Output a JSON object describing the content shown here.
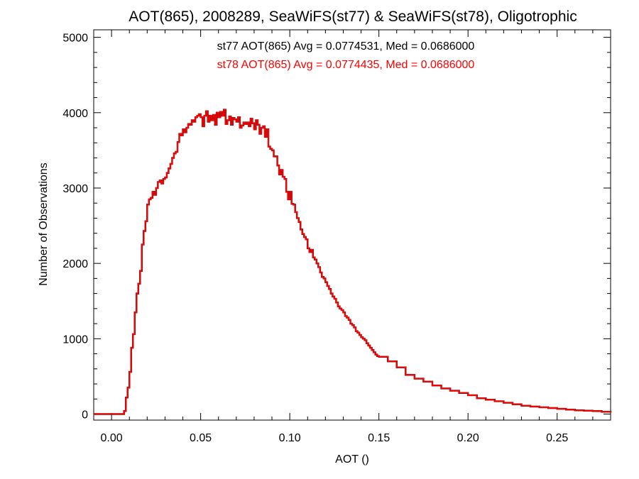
{
  "chart_data": {
    "type": "line",
    "title": "AOT(865), 2008289, SeaWiFS(st77) & SeaWiFS(st78), Oligotrophic",
    "xlabel": "AOT ()",
    "ylabel": "Number of Observations",
    "xlim": [
      -0.01,
      0.28
    ],
    "ylim": [
      -80,
      5100
    ],
    "x_ticks": [
      0.0,
      0.05,
      0.1,
      0.15,
      0.2,
      0.25
    ],
    "x_tick_labels": [
      "0.00",
      "0.05",
      "0.10",
      "0.15",
      "0.20",
      "0.25"
    ],
    "y_ticks": [
      0,
      1000,
      2000,
      3000,
      4000,
      5000
    ],
    "y_tick_labels": [
      "0",
      "1000",
      "2000",
      "3000",
      "4000",
      "5000"
    ],
    "grid": false,
    "step": true,
    "x": [
      -0.01,
      -0.006,
      -0.002,
      0.002,
      0.004,
      0.006,
      0.007,
      0.008,
      0.009,
      0.01,
      0.011,
      0.012,
      0.013,
      0.014,
      0.015,
      0.016,
      0.017,
      0.018,
      0.019,
      0.02,
      0.021,
      0.022,
      0.023,
      0.024,
      0.025,
      0.026,
      0.027,
      0.028,
      0.029,
      0.03,
      0.031,
      0.032,
      0.033,
      0.034,
      0.035,
      0.036,
      0.037,
      0.038,
      0.039,
      0.04,
      0.041,
      0.042,
      0.043,
      0.044,
      0.045,
      0.046,
      0.047,
      0.048,
      0.049,
      0.05,
      0.051,
      0.052,
      0.053,
      0.054,
      0.055,
      0.056,
      0.057,
      0.058,
      0.059,
      0.06,
      0.061,
      0.062,
      0.063,
      0.064,
      0.065,
      0.066,
      0.067,
      0.068,
      0.069,
      0.07,
      0.071,
      0.072,
      0.073,
      0.074,
      0.075,
      0.076,
      0.077,
      0.078,
      0.079,
      0.08,
      0.081,
      0.082,
      0.083,
      0.084,
      0.085,
      0.086,
      0.087,
      0.088,
      0.089,
      0.09,
      0.091,
      0.092,
      0.093,
      0.094,
      0.095,
      0.096,
      0.097,
      0.098,
      0.099,
      0.1,
      0.101,
      0.102,
      0.103,
      0.104,
      0.105,
      0.106,
      0.107,
      0.108,
      0.109,
      0.11,
      0.111,
      0.112,
      0.113,
      0.114,
      0.115,
      0.116,
      0.117,
      0.118,
      0.119,
      0.12,
      0.121,
      0.122,
      0.123,
      0.124,
      0.125,
      0.126,
      0.127,
      0.128,
      0.129,
      0.13,
      0.131,
      0.132,
      0.133,
      0.134,
      0.135,
      0.136,
      0.137,
      0.138,
      0.139,
      0.14,
      0.141,
      0.142,
      0.143,
      0.144,
      0.145,
      0.146,
      0.147,
      0.148,
      0.149,
      0.15,
      0.155,
      0.16,
      0.165,
      0.17,
      0.175,
      0.18,
      0.185,
      0.19,
      0.195,
      0.2,
      0.205,
      0.21,
      0.215,
      0.22,
      0.225,
      0.23,
      0.235,
      0.24,
      0.245,
      0.25,
      0.255,
      0.26,
      0.265,
      0.27,
      0.275,
      0.28
    ],
    "series": [
      {
        "name": "st77",
        "color": "#000000",
        "values": [
          0,
          0,
          0,
          0,
          0,
          0,
          40,
          220,
          350,
          560,
          880,
          1060,
          1350,
          1600,
          1730,
          1900,
          2250,
          2430,
          2560,
          2780,
          2850,
          2870,
          2950,
          2910,
          3000,
          3080,
          3100,
          3060,
          3120,
          3140,
          3200,
          3260,
          3320,
          3400,
          3460,
          3480,
          3610,
          3720,
          3700,
          3780,
          3740,
          3800,
          3850,
          3840,
          3900,
          3880,
          3940,
          3960,
          3980,
          3940,
          3820,
          3960,
          4020,
          3880,
          3960,
          3900,
          3970,
          3840,
          4000,
          3940,
          4010,
          3960,
          4040,
          3850,
          3900,
          3950,
          3840,
          3930,
          3910,
          3880,
          3940,
          3800,
          3830,
          3870,
          3850,
          3870,
          3820,
          3920,
          3860,
          3780,
          3900,
          3840,
          3720,
          3800,
          3820,
          3680,
          3780,
          3550,
          3520,
          3500,
          3420,
          3420,
          3300,
          3180,
          3240,
          3150,
          3120,
          2950,
          2850,
          2950,
          2790,
          2780,
          2680,
          2600,
          2550,
          2450,
          2390,
          2350,
          2320,
          2200,
          2150,
          2180,
          2080,
          2050,
          2000,
          1950,
          1880,
          1820,
          1800,
          1750,
          1700,
          1660,
          1600,
          1560,
          1530,
          1480,
          1430,
          1400,
          1380,
          1350,
          1300,
          1280,
          1250,
          1200,
          1180,
          1150,
          1100,
          1080,
          1050,
          1020,
          1000,
          980,
          940,
          910,
          880,
          850,
          820,
          790,
          770,
          760,
          700,
          620,
          520,
          470,
          430,
          380,
          340,
          310,
          280,
          250,
          210,
          190,
          170,
          150,
          130,
          110,
          100,
          90,
          80,
          70,
          60,
          50,
          45,
          40,
          30,
          20
        ]
      },
      {
        "name": "st78",
        "color": "#ff0000",
        "values": [
          0,
          0,
          0,
          0,
          0,
          0,
          40,
          220,
          350,
          560,
          880,
          1060,
          1350,
          1600,
          1730,
          1900,
          2250,
          2430,
          2560,
          2780,
          2850,
          2870,
          2950,
          2910,
          3000,
          3080,
          3100,
          3060,
          3120,
          3140,
          3200,
          3260,
          3320,
          3400,
          3460,
          3480,
          3610,
          3720,
          3700,
          3780,
          3740,
          3800,
          3850,
          3840,
          3900,
          3880,
          3940,
          3960,
          3980,
          3940,
          3820,
          3960,
          4020,
          3880,
          3960,
          3900,
          3970,
          3840,
          4000,
          3940,
          4010,
          3960,
          4040,
          3850,
          3900,
          3950,
          3840,
          3930,
          3910,
          3880,
          3940,
          3800,
          3830,
          3870,
          3850,
          3870,
          3820,
          3920,
          3860,
          3780,
          3900,
          3840,
          3720,
          3800,
          3820,
          3680,
          3780,
          3550,
          3520,
          3500,
          3420,
          3420,
          3300,
          3180,
          3240,
          3150,
          3120,
          2950,
          2850,
          2950,
          2790,
          2780,
          2680,
          2600,
          2550,
          2450,
          2390,
          2350,
          2320,
          2200,
          2150,
          2180,
          2080,
          2050,
          2000,
          1950,
          1880,
          1820,
          1800,
          1750,
          1700,
          1660,
          1600,
          1560,
          1530,
          1480,
          1430,
          1400,
          1380,
          1350,
          1300,
          1280,
          1250,
          1200,
          1180,
          1150,
          1100,
          1080,
          1050,
          1020,
          1000,
          980,
          940,
          910,
          880,
          850,
          820,
          790,
          770,
          760,
          700,
          620,
          520,
          470,
          430,
          380,
          340,
          310,
          280,
          250,
          210,
          190,
          170,
          150,
          130,
          110,
          100,
          90,
          80,
          70,
          60,
          50,
          45,
          40,
          30,
          20
        ]
      }
    ],
    "annotations": [
      {
        "text": "st77 AOT(865) Avg = 0.0774531, Med = 0.0686000",
        "color": "#000000"
      },
      {
        "text": "st78 AOT(865) Avg = 0.0774435, Med = 0.0686000",
        "color": "#ff0000"
      }
    ]
  }
}
